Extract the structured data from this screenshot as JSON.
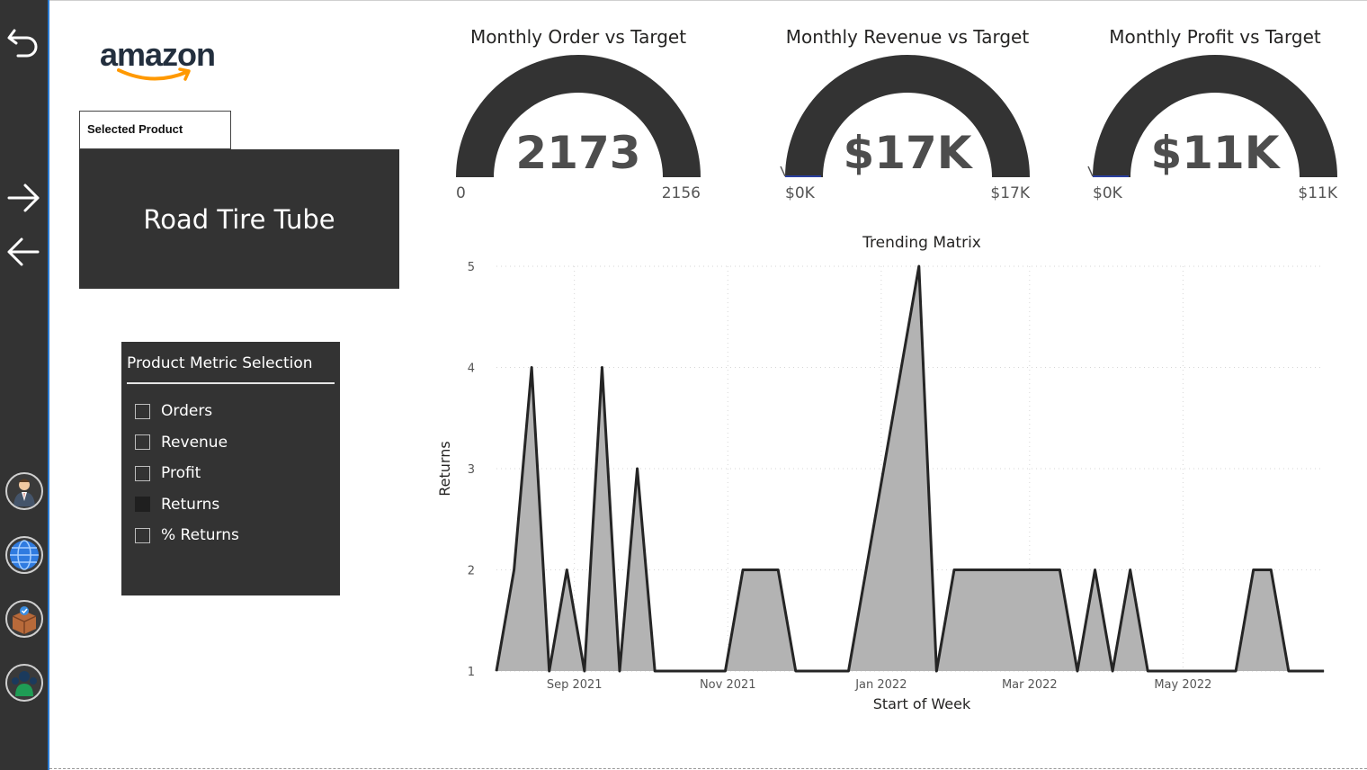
{
  "nav": {
    "back_icon": "undo-arrow-icon",
    "forward_icon": "arrow-right-icon",
    "prev_icon": "arrow-left-icon",
    "avatars": [
      "businessman-icon",
      "globe-icon",
      "package-icon",
      "team-icon"
    ]
  },
  "logo": {
    "text": "amazon"
  },
  "selected_product": {
    "label": "Selected Product",
    "value": "Road Tire Tube"
  },
  "metric_selection": {
    "title": "Product Metric Selection",
    "options": [
      {
        "label": "Orders",
        "checked": false
      },
      {
        "label": "Revenue",
        "checked": false
      },
      {
        "label": "Profit",
        "checked": false
      },
      {
        "label": "Returns",
        "checked": true
      },
      {
        "label": "% Returns",
        "checked": false
      }
    ]
  },
  "gauges": [
    {
      "title": "Monthly Order vs Target",
      "value": "2173",
      "min": "0",
      "max": "2156"
    },
    {
      "title": "Monthly Revenue vs Target",
      "value": "$17K",
      "min": "$0K",
      "max": "$17K"
    },
    {
      "title": "Monthly Profit vs Target",
      "value": "$11K",
      "min": "$0K",
      "max": "$11K"
    }
  ],
  "colors": {
    "dark_panel": "#333333",
    "area_fill": "#b3b3b3",
    "area_line": "#252525",
    "accent_blue": "#2b7cd3"
  },
  "chart_data": {
    "type": "area",
    "title": "Trending Matrix",
    "xlabel": "Start of Week",
    "ylabel": "Returns",
    "ylim": [
      1,
      5
    ],
    "yticks": [
      1,
      2,
      3,
      4,
      5
    ],
    "xtick_labels": [
      "Sep 2021",
      "Nov 2021",
      "Jan 2022",
      "Mar 2022",
      "May 2022"
    ],
    "grid": true,
    "series": [
      {
        "x": [
          "2021-08-01",
          "2021-08-08",
          "2021-08-15",
          "2021-08-22",
          "2021-08-29",
          "2021-09-05",
          "2021-09-12",
          "2021-09-19",
          "2021-09-26",
          "2021-10-03",
          "2021-10-10",
          "2021-10-17",
          "2021-10-24",
          "2021-10-31",
          "2021-11-07",
          "2021-11-14",
          "2021-11-21",
          "2021-11-28",
          "2021-12-05",
          "2021-12-12",
          "2021-12-19",
          "2021-12-26",
          "2022-01-02",
          "2022-01-09",
          "2022-01-16",
          "2022-01-23",
          "2022-01-30",
          "2022-02-06",
          "2022-02-13",
          "2022-02-20",
          "2022-02-27",
          "2022-03-06",
          "2022-03-13",
          "2022-03-20",
          "2022-03-27",
          "2022-04-03",
          "2022-04-10",
          "2022-04-17",
          "2022-04-24",
          "2022-05-01",
          "2022-05-08",
          "2022-05-15",
          "2022-05-22",
          "2022-05-29",
          "2022-06-05",
          "2022-06-12",
          "2022-06-19",
          "2022-06-26"
        ],
        "values": [
          1,
          2,
          4,
          1,
          2,
          1,
          4,
          1,
          3,
          1,
          1,
          1,
          1,
          1,
          2,
          2,
          2,
          1,
          1,
          1,
          1,
          2,
          3,
          4,
          5,
          1,
          2,
          2,
          2,
          2,
          2,
          2,
          2,
          1,
          2,
          1,
          2,
          1,
          1,
          1,
          1,
          1,
          1,
          2,
          2,
          1,
          1,
          1
        ]
      }
    ]
  }
}
